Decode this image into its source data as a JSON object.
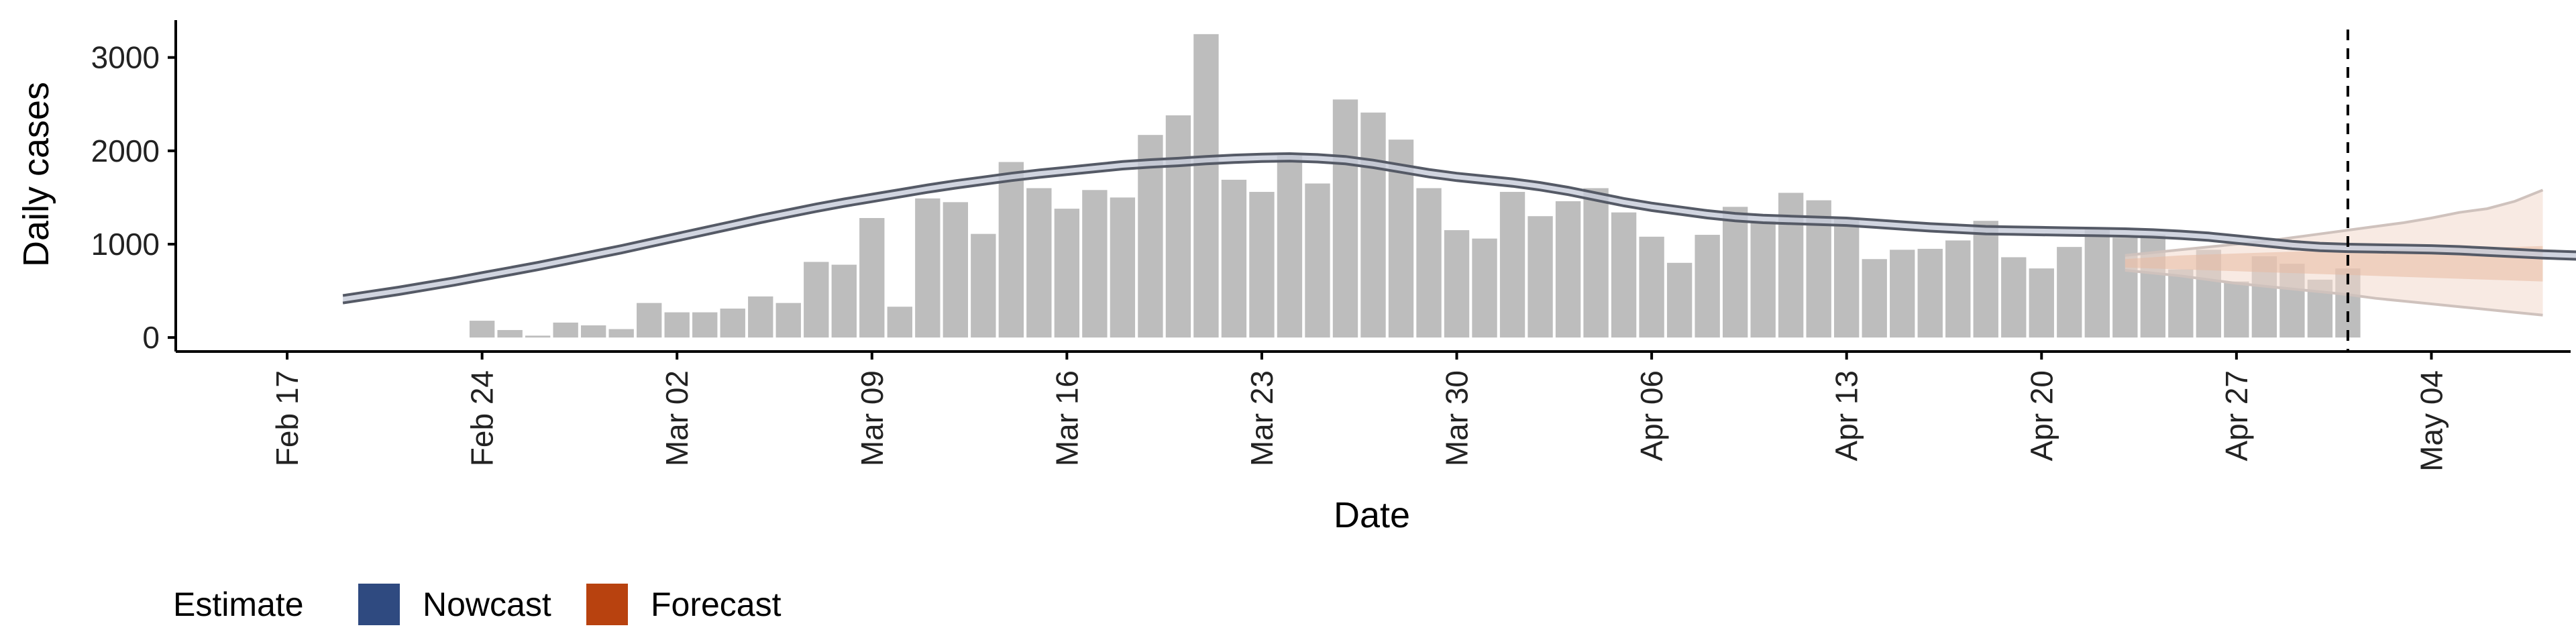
{
  "chart_data": {
    "type": "bar",
    "title": "",
    "xlabel": "Date",
    "ylabel": "Daily cases",
    "y_ticks": [
      0,
      1000,
      2000,
      3000
    ],
    "ylim": [
      -150,
      3400
    ],
    "xlim": [
      "2020-02-13",
      "2020-05-09"
    ],
    "x_ticks": [
      {
        "date": "2020-02-17",
        "label": "Feb 17"
      },
      {
        "date": "2020-02-24",
        "label": "Feb 24"
      },
      {
        "date": "2020-03-02",
        "label": "Mar 02"
      },
      {
        "date": "2020-03-09",
        "label": "Mar 09"
      },
      {
        "date": "2020-03-16",
        "label": "Mar 16"
      },
      {
        "date": "2020-03-23",
        "label": "Mar 23"
      },
      {
        "date": "2020-03-30",
        "label": "Mar 30"
      },
      {
        "date": "2020-04-06",
        "label": "Apr 06"
      },
      {
        "date": "2020-04-13",
        "label": "Apr 13"
      },
      {
        "date": "2020-04-20",
        "label": "Apr 20"
      },
      {
        "date": "2020-04-27",
        "label": "Apr 27"
      },
      {
        "date": "2020-05-04",
        "label": "May 04"
      }
    ],
    "bars": {
      "start_date": "2020-02-24",
      "values": [
        180,
        80,
        20,
        160,
        130,
        90,
        370,
        270,
        270,
        310,
        440,
        370,
        810,
        780,
        1280,
        330,
        1490,
        1450,
        1110,
        1880,
        1600,
        1380,
        1580,
        1500,
        2170,
        2380,
        3250,
        1690,
        1560,
        1950,
        1650,
        2550,
        2410,
        2120,
        1600,
        1150,
        1060,
        1560,
        1300,
        1460,
        1600,
        1340,
        1080,
        800,
        1100,
        1400,
        1250,
        1550,
        1470,
        1270,
        840,
        940,
        950,
        1040,
        1250,
        860,
        740,
        970,
        1170,
        1070,
        1100,
        730,
        940,
        600,
        870,
        790,
        620,
        740
      ]
    },
    "nowcast": {
      "start_date": "2020-02-19",
      "median": [
        410,
        455,
        500,
        550,
        600,
        655,
        710,
        765,
        825,
        885,
        945,
        1010,
        1075,
        1140,
        1205,
        1270,
        1330,
        1390,
        1445,
        1495,
        1545,
        1595,
        1640,
        1680,
        1720,
        1755,
        1785,
        1815,
        1845,
        1865,
        1880,
        1900,
        1915,
        1925,
        1930,
        1920,
        1900,
        1860,
        1810,
        1760,
        1720,
        1690,
        1660,
        1620,
        1570,
        1510,
        1450,
        1400,
        1360,
        1320,
        1290,
        1270,
        1260,
        1250,
        1240,
        1220,
        1200,
        1180,
        1165,
        1150,
        1145,
        1140,
        1135,
        1130,
        1125,
        1115,
        1100,
        1080,
        1050,
        1020,
        990,
        970,
        960,
        955,
        950,
        945,
        935,
        920,
        905,
        890,
        880,
        870,
        860,
        850,
        840,
        830,
        820
      ],
      "band": 40
    },
    "forecast": {
      "start_date": "2020-04-23",
      "median": [
        790,
        800,
        810,
        815,
        820,
        825,
        830,
        835,
        840,
        845,
        850,
        850,
        852,
        852,
        855,
        855
      ],
      "upper": [
        880,
        910,
        940,
        970,
        1000,
        1030,
        1070,
        1110,
        1150,
        1190,
        1230,
        1280,
        1340,
        1380,
        1460,
        1580
      ],
      "lower": [
        720,
        690,
        660,
        620,
        580,
        550,
        520,
        490,
        460,
        420,
        390,
        360,
        330,
        300,
        270,
        240
      ],
      "inner_upper": [
        840,
        860,
        880,
        890,
        900,
        910,
        920,
        930,
        935,
        940,
        950,
        955,
        960,
        965,
        970,
        980
      ],
      "inner_lower": [
        750,
        740,
        730,
        720,
        710,
        700,
        690,
        680,
        670,
        660,
        650,
        640,
        630,
        620,
        610,
        600
      ]
    },
    "vline_date": "2020-05-01",
    "legend": {
      "title": "Estimate",
      "position": "bottom-left",
      "items": [
        {
          "label": "Nowcast",
          "color": "#2f4a80"
        },
        {
          "label": "Forecast",
          "color": "#b8420f"
        }
      ]
    },
    "colors": {
      "bars": "#bdbdbd",
      "nowcast_line": "#555a66",
      "nowcast_band": "#c5cad8",
      "forecast_band": "#f3d9cc",
      "forecast_inner": "#e8b9a3",
      "axis": "#000000"
    }
  }
}
